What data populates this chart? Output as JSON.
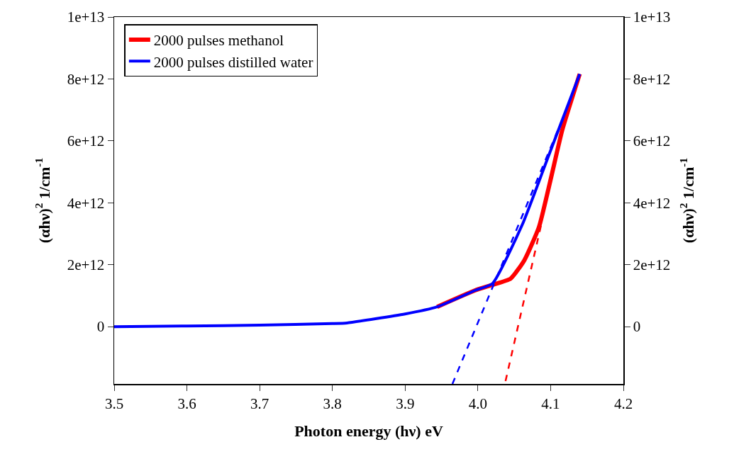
{
  "chart_data": {
    "type": "line",
    "xlabel": "Photon energy (hν) eV",
    "ylabel": "(αhν)$^{2}$ 1/cm$^{-1}$",
    "y2label": "(αhν)$^{2}$ 1/cm$^{-1}$",
    "xlim": [
      3.5,
      4.2
    ],
    "xticks": [
      3.5,
      3.6,
      3.7,
      3.8,
      3.9,
      {
        "value": 4,
        "label": "4.0"
      },
      4.1,
      4.2
    ],
    "ylim": [
      -1850000000000.0,
      10000000000000.0
    ],
    "yticks": [
      {
        "value": 0,
        "label": "0"
      },
      {
        "value": 2000000000000.0,
        "label": "2e+12"
      },
      {
        "value": 4000000000000.0,
        "label": "4e+12"
      },
      {
        "value": 6000000000000.0,
        "label": "6e+12"
      },
      {
        "value": 8000000000000.0,
        "label": "8e+12"
      },
      {
        "value": 10000000000000.0,
        "label": "1e+13"
      }
    ],
    "y2lim": [
      -1850000000000.0,
      10000000000000.0
    ],
    "y2ticks": [
      {
        "value": 0,
        "label": "0"
      },
      {
        "value": 2000000000000.0,
        "label": "2e+12"
      },
      {
        "value": 4000000000000.0,
        "label": "4e+12"
      },
      {
        "value": 6000000000000.0,
        "label": "6e+12"
      },
      {
        "value": 8000000000000.0,
        "label": "8e+12"
      },
      {
        "value": 10000000000000.0,
        "label": "1e+13"
      }
    ],
    "grid": false,
    "legend": "top left",
    "marker": "none",
    "line_style": "solid",
    "series": [
      {
        "name": "2000 pulses methanol",
        "color": "#ff0000",
        "x": [
          3.944,
          3.996,
          4.02,
          4.045,
          4.064,
          4.084,
          4.1,
          4.116,
          4.14
        ],
        "values": [
          640000000000.0,
          1170000000000.0,
          1350000000000.0,
          1550000000000.0,
          2150000000000.0,
          3220000000000.0,
          4750000000000.0,
          6350000000000.0,
          8160000000000.0
        ]
      },
      {
        "name": "2000 pulses distilled water",
        "color": "#0000ff",
        "x": [
          3.5,
          3.6,
          3.7,
          3.8,
          3.82,
          3.9,
          3.944,
          3.996,
          4.02,
          4.061,
          4.096,
          4.14
        ],
        "values": [
          0,
          20000000000.0,
          50000000000.0,
          100000000000.0,
          120000000000.0,
          410000000000.0,
          640000000000.0,
          1170000000000.0,
          1390000000000.0,
          3290000000000.0,
          5440000000000.0,
          8160000000000.0
        ]
      },
      {
        "type": "line",
        "line_style": "dashed",
        "color": "#ff0000",
        "x": [
          4.038,
          4.087
        ],
        "values": [
          -1760000000000.0,
          3290000000000.0
        ]
      },
      {
        "type": "line",
        "line_style": "dashed",
        "color": "#0000ff",
        "x": [
          3.965,
          4.11
        ],
        "values": [
          -1850000000000.0,
          6350000000000.0
        ]
      }
    ]
  }
}
